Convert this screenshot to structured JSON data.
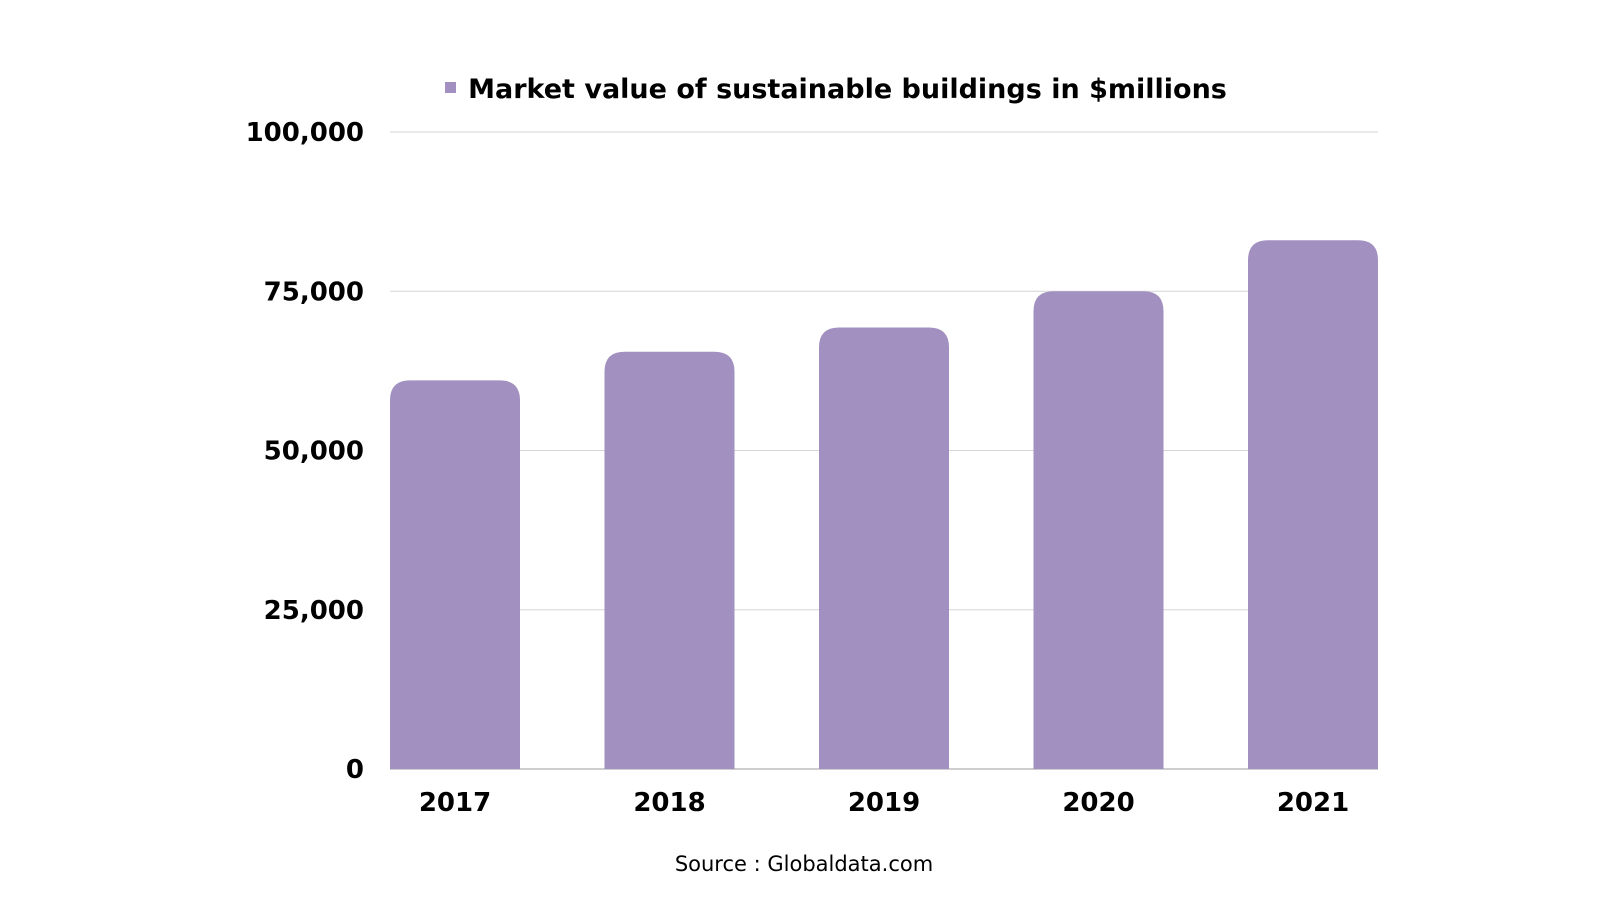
{
  "chart_data": {
    "type": "bar",
    "categories": [
      "2017",
      "2018",
      "2019",
      "2020",
      "2021"
    ],
    "series": [
      {
        "name": "Market value of sustainable buildings in $millions",
        "values": [
          61000,
          65500,
          69300,
          75000,
          83000
        ]
      }
    ],
    "y_ticks": [
      "0",
      "25,000",
      "50,000",
      "75,000",
      "100,000"
    ],
    "ylim": [
      0,
      100000
    ],
    "grid": true,
    "legend_position": "top-center",
    "bar_color": "#a190c0",
    "source": "Source : Globaldata.com"
  }
}
